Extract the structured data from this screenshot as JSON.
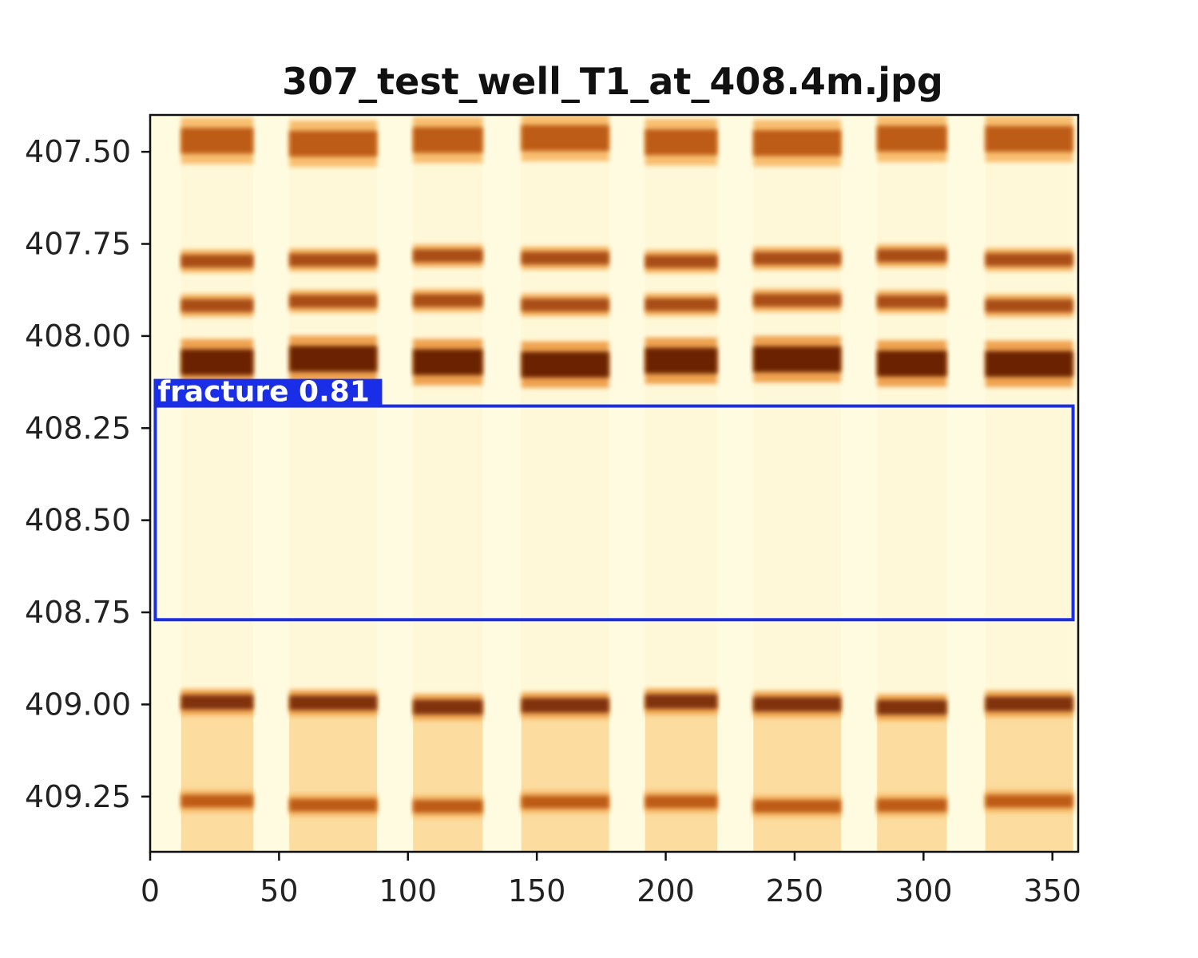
{
  "chart_data": {
    "type": "heatmap",
    "title": "307_test_well_T1_at_408.4m.jpg",
    "xlabel": "",
    "ylabel": "",
    "xlim": [
      0,
      360
    ],
    "ylim": [
      409.4,
      407.4
    ],
    "x_ticks": [
      0,
      50,
      100,
      150,
      200,
      250,
      300,
      350
    ],
    "x_tick_labels": [
      "0",
      "50",
      "100",
      "150",
      "200",
      "250",
      "300",
      "350"
    ],
    "y_ticks": [
      407.5,
      407.75,
      408.0,
      408.25,
      408.5,
      408.75,
      409.0,
      409.25
    ],
    "y_tick_labels": [
      "407.50",
      "407.75",
      "408.00",
      "408.25",
      "408.50",
      "408.75",
      "409.00",
      "409.25"
    ],
    "colormap": [
      "#fffbe0",
      "#fde7b0",
      "#f6b15c",
      "#d2691e",
      "#6b2306"
    ],
    "pads": [
      {
        "x0": 12,
        "x1": 40
      },
      {
        "x0": 54,
        "x1": 88
      },
      {
        "x0": 102,
        "x1": 129
      },
      {
        "x0": 144,
        "x1": 178
      },
      {
        "x0": 192,
        "x1": 220
      },
      {
        "x0": 234,
        "x1": 268
      },
      {
        "x0": 282,
        "x1": 309
      },
      {
        "x0": 324,
        "x1": 358
      }
    ],
    "bands": [
      {
        "depth": 407.47,
        "thickness": 0.07,
        "intensity": 0.8
      },
      {
        "depth": 407.79,
        "thickness": 0.035,
        "intensity": 0.85
      },
      {
        "depth": 407.91,
        "thickness": 0.035,
        "intensity": 0.85
      },
      {
        "depth": 408.07,
        "thickness": 0.07,
        "intensity": 1.0
      },
      {
        "depth": 409.0,
        "thickness": 0.04,
        "intensity": 0.95
      },
      {
        "depth": 409.27,
        "thickness": 0.035,
        "intensity": 0.8
      }
    ],
    "background_zones": [
      {
        "from": 409.0,
        "to": 409.4,
        "intensity": 0.3
      }
    ],
    "detection": {
      "label": "fracture",
      "score": "0.81",
      "x_range": [
        2,
        358
      ],
      "depth_range": [
        408.19,
        408.77
      ],
      "color": "#1a2ee8"
    }
  }
}
